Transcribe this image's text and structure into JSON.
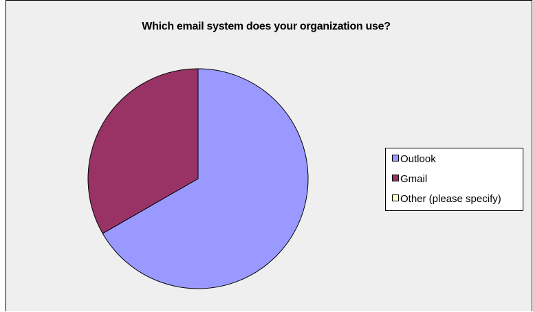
{
  "chart_data": {
    "type": "pie",
    "title": "Which email system does your organization use?",
    "categories": [
      "Outlook",
      "Gmail",
      "Other (please specify)"
    ],
    "values": [
      66.7,
      33.3,
      0
    ],
    "colors": [
      "#9999ff",
      "#993366",
      "#ffffcc"
    ],
    "start_angle_deg": 0,
    "direction": "clockwise",
    "legend_position": "right"
  }
}
